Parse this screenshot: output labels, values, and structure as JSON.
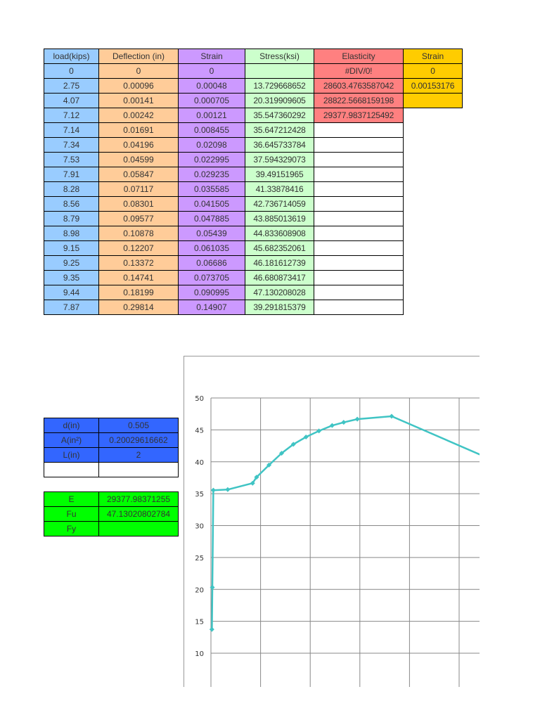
{
  "main_table": {
    "headers": [
      "load(kips)",
      "Deflection (in)",
      "Strain",
      "Stress(ksi)",
      "Elasticity",
      "Strain"
    ],
    "rows": [
      [
        "0",
        "0",
        "0",
        "",
        "#DIV/0!",
        "0"
      ],
      [
        "2.75",
        "0.00096",
        "0.00048",
        "13.729668652",
        "28603.4763587042",
        "0.00153176"
      ],
      [
        "4.07",
        "0.00141",
        "0.000705",
        "20.319909605",
        "28822.5668159198",
        ""
      ],
      [
        "7.12",
        "0.00242",
        "0.00121",
        "35.547360292",
        "29377.9837125492",
        ""
      ],
      [
        "7.14",
        "0.01691",
        "0.008455",
        "35.647212428",
        "",
        ""
      ],
      [
        "7.34",
        "0.04196",
        "0.02098",
        "36.645733784",
        "",
        ""
      ],
      [
        "7.53",
        "0.04599",
        "0.022995",
        "37.594329073",
        "",
        ""
      ],
      [
        "7.91",
        "0.05847",
        "0.029235",
        "39.49151965",
        "",
        ""
      ],
      [
        "8.28",
        "0.07117",
        "0.035585",
        "41.33878416",
        "",
        ""
      ],
      [
        "8.56",
        "0.08301",
        "0.041505",
        "42.736714059",
        "",
        ""
      ],
      [
        "8.79",
        "0.09577",
        "0.047885",
        "43.885013619",
        "",
        ""
      ],
      [
        "8.98",
        "0.10878",
        "0.05439",
        "44.833608908",
        "",
        ""
      ],
      [
        "9.15",
        "0.12207",
        "0.061035",
        "45.682352061",
        "",
        ""
      ],
      [
        "9.25",
        "0.13372",
        "0.06686",
        "46.181612739",
        "",
        ""
      ],
      [
        "9.35",
        "0.14741",
        "0.073705",
        "46.680873417",
        "",
        ""
      ],
      [
        "9.44",
        "0.18199",
        "0.090995",
        "47.130208028",
        "",
        ""
      ],
      [
        "7.87",
        "0.29814",
        "0.14907",
        "39.291815379",
        "",
        ""
      ]
    ]
  },
  "props": {
    "d_label": "d(in)",
    "d_value": "0.505",
    "a_label": "A(in²)",
    "a_value": "0.20029616662",
    "l_label": "L(in)",
    "l_value": "2"
  },
  "results": {
    "e_label": "E",
    "e_value": "29377.98371255",
    "fu_label": "Fu",
    "fu_value": "47.13020802784",
    "fy_label": "Fy",
    "fy_value": ""
  },
  "colors": {
    "load": "#99ccff",
    "deflection": "#ffcc99",
    "strain": "#cc99ff",
    "stress": "#ccffcc",
    "elasticity": "#ff8080",
    "strain2": "#ffcc00",
    "props": "#3366ff",
    "results": "#00ff00",
    "series": "#40c4c4"
  },
  "chart_data": {
    "type": "line",
    "title": "",
    "xlabel": "",
    "ylabel": "",
    "grid": true,
    "ylim": [
      10,
      50
    ],
    "xlim": [
      0,
      0.125
    ],
    "y_ticks": [
      "10",
      "15",
      "20",
      "25",
      "30",
      "35",
      "40",
      "45",
      "50"
    ],
    "series": [
      {
        "x": [
          0.00048,
          0.000705,
          0.00121,
          0.008455,
          0.02098,
          0.022995,
          0.029235,
          0.035585,
          0.041505,
          0.047885,
          0.05439,
          0.061035,
          0.06686,
          0.073705,
          0.090995,
          0.14907
        ],
        "values": [
          13.729668652,
          20.319909605,
          35.547360292,
          35.647212428,
          36.645733784,
          37.594329073,
          39.49151965,
          41.33878416,
          42.736714059,
          43.885013619,
          44.833608908,
          45.682352061,
          46.181612739,
          46.680873417,
          47.130208028,
          39.291815379
        ]
      }
    ]
  }
}
